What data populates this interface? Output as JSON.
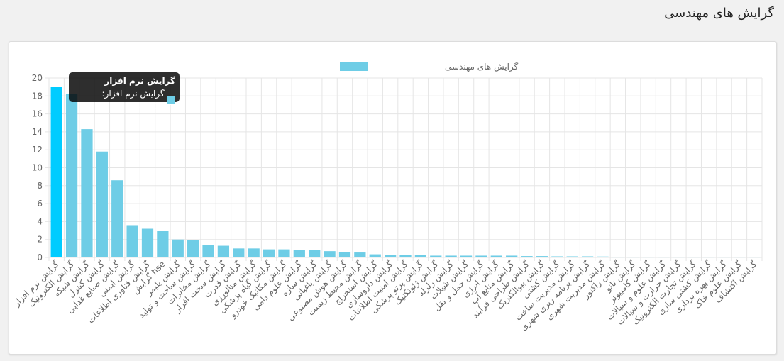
{
  "page": {
    "title": "گرایش های مهندسی"
  },
  "colors": {
    "bar": "#6ecde6",
    "bar_active": "#00ccff",
    "grid": "#e5e5e5",
    "text": "#666666"
  },
  "tooltip": {
    "title": "گرایش نرم افزار",
    "text": "گرایش نرم افزار: 19.04%"
  },
  "chart_data": {
    "type": "bar",
    "legend": {
      "label": "گرایش های مهندسی",
      "position": "top"
    },
    "ylim": [
      0,
      20
    ],
    "yticks": [
      0,
      2,
      4,
      6,
      8,
      10,
      12,
      14,
      16,
      18,
      20
    ],
    "grid": true,
    "active_index": 0,
    "categories": [
      "گرایش نرم افزار",
      "گرایش الکترونیک",
      "گرایش شبکه",
      "گرایش کنترل",
      "گرایش صنایع غذایی",
      "گرایش ایمنی",
      "گرایش فناوری اطلاعات",
      "گرایش hse",
      "گرایش پلیمر",
      "گرایش ساخت و تولید",
      "گرایش مخابرات",
      "گرایش سخت افزار",
      "گرایش قدرت",
      "گرایش متالورژی",
      "گرایش گیاه پزشکی",
      "گرایش مکانیک خودرو",
      "گرایش علوم دامی",
      "گرایش سازه",
      "گرایش باغبانی",
      "گرایش هوش مصنوعی",
      "گرایش محیط زیست",
      "گرایش استخراج",
      "گرایش داروسازی",
      "گرایش امنیت اطلاعات",
      "گرایش پرتو پزشکی",
      "گرایش ژئوتکنیک",
      "گرایش زلزله",
      "گرایش شیلات",
      "گرایش حمل و نقل",
      "گرایش انرژی",
      "گرایش منابع آب",
      "گرایش طراحی فرآیند",
      "گرایش بیوالکتریک",
      "گرایش کشتی",
      "گرایش مدیریت ساخت",
      "گرایش برنامه ریزی شهری",
      "گرایش مدیریت شهری",
      "گرایش راکتور",
      "گرایش نانو",
      "گرایش کامپیوتر",
      "گرایش علوم و سیالات",
      "گرایش حرارت و سیالات",
      "گرایش تجارت الکترونیک",
      "گرایش کشتی سازی",
      "گرایش بهره برداری",
      "گرایش علوم خاک",
      "گرایش اکتشاف"
    ],
    "values": [
      19.04,
      18.2,
      14.3,
      11.8,
      8.6,
      3.6,
      3.2,
      3.0,
      2.0,
      1.9,
      1.4,
      1.3,
      1.0,
      1.0,
      0.9,
      0.9,
      0.8,
      0.8,
      0.7,
      0.6,
      0.55,
      0.35,
      0.3,
      0.3,
      0.28,
      0.2,
      0.2,
      0.2,
      0.2,
      0.2,
      0.2,
      0.15,
      0.15,
      0.12,
      0.12,
      0.12,
      0.1,
      0.06,
      0.06,
      0.06,
      0.06,
      0.06,
      0.06,
      0.06,
      0.06,
      0.06,
      0.06
    ]
  }
}
